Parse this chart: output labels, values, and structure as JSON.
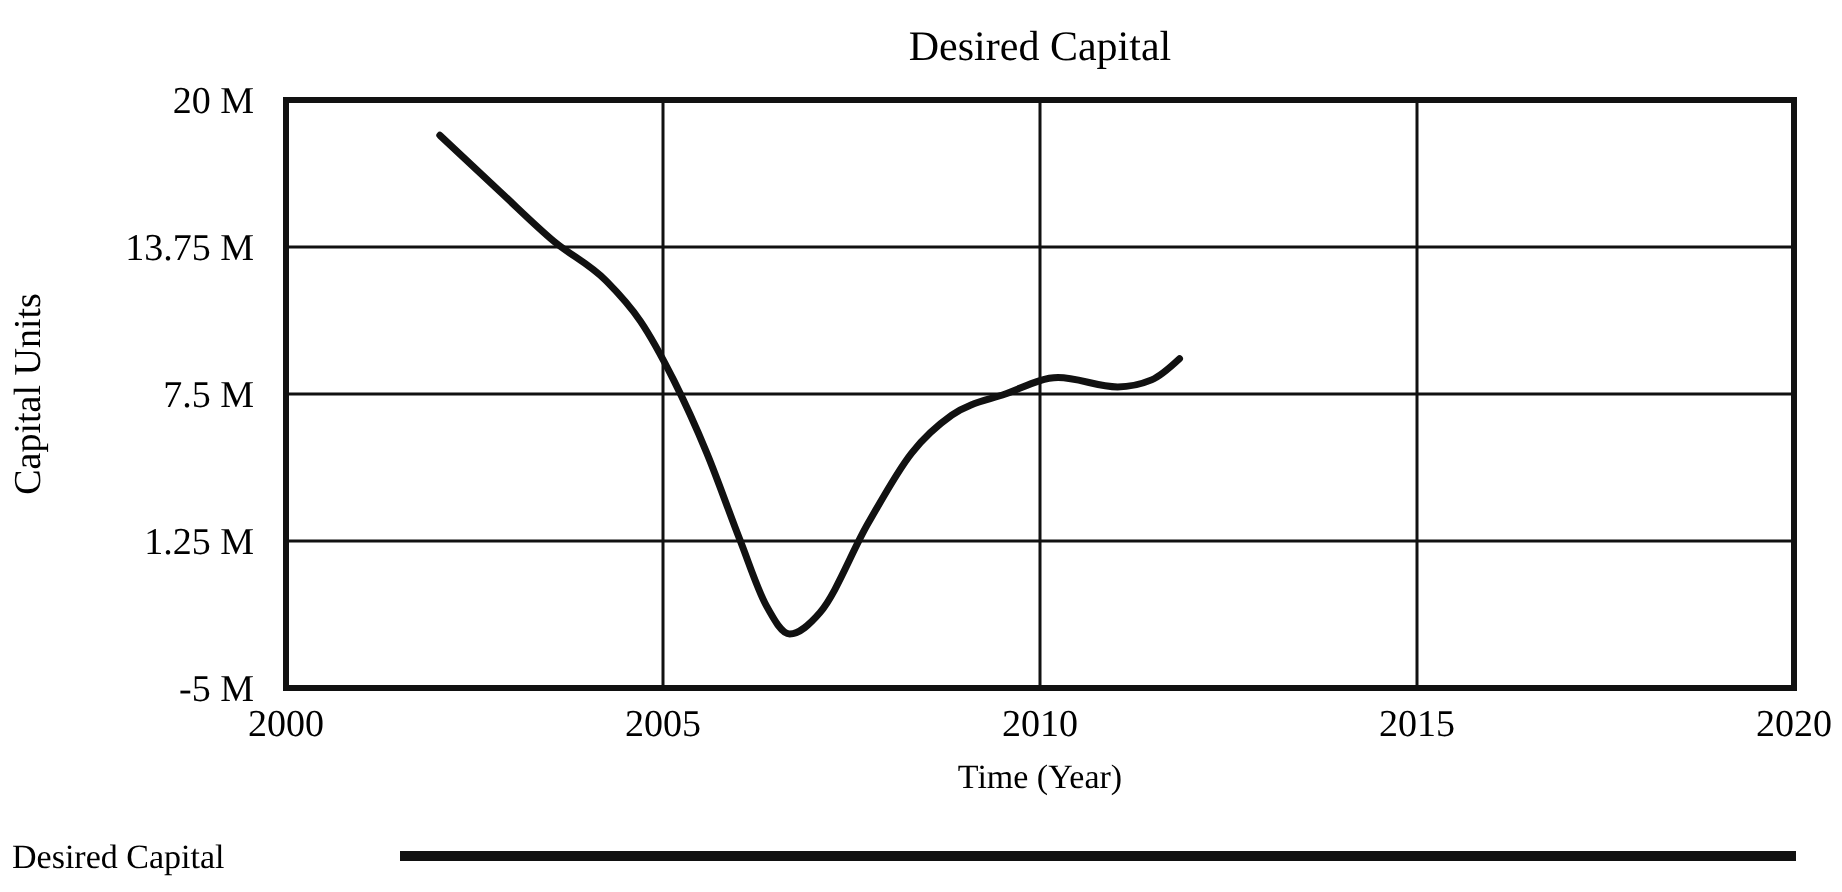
{
  "chart_data": {
    "type": "line",
    "title": "Desired Capital",
    "xlabel": "Time (Year)",
    "ylabel": "Capital Units",
    "xlim": [
      2000,
      2020
    ],
    "xticks": [
      2000,
      2005,
      2010,
      2015,
      2020
    ],
    "ylim": [
      -5,
      20
    ],
    "yticks": [
      {
        "value": -5,
        "label": "-5 M"
      },
      {
        "value": 1.25,
        "label": "1.25 M"
      },
      {
        "value": 7.5,
        "label": "7.5 M"
      },
      {
        "value": 13.75,
        "label": "13.75 M"
      },
      {
        "value": 20,
        "label": "20 M"
      }
    ],
    "grid": true,
    "legend": "bottom",
    "marker": "none",
    "line_style": "solid",
    "series": [
      {
        "name": "Desired Capital",
        "color": "#111111",
        "x": [
          2002.04,
          2002.84,
          2003.55,
          2004.25,
          2004.7,
          2005.14,
          2005.58,
          2006.02,
          2006.37,
          2006.68,
          2007.08,
          2007.72,
          2008.3,
          2008.83,
          2009.54,
          2010.24,
          2011.03,
          2011.48,
          2011.85
        ],
        "values": [
          18.5,
          16.1,
          14.0,
          12.3,
          10.6,
          8.1,
          5.0,
          1.3,
          -1.5,
          -2.7,
          -1.8,
          2.0,
          5.0,
          6.6,
          7.5,
          8.2,
          7.8,
          8.1,
          9.0
        ]
      }
    ]
  }
}
